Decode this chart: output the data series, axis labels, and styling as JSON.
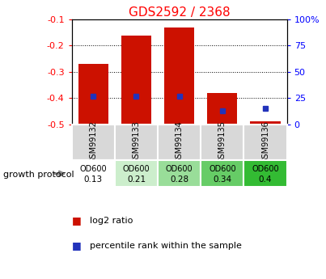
{
  "title": "GDS2592 / 2368",
  "samples": [
    "GSM99132",
    "GSM99133",
    "GSM99134",
    "GSM99135",
    "GSM99136"
  ],
  "log2_ratio": [
    -0.27,
    -0.16,
    -0.13,
    -0.38,
    -0.49
  ],
  "bar_bottom": -0.5,
  "percentile_rank": [
    27,
    27,
    27,
    13,
    15
  ],
  "od600_values": [
    "0.13",
    "0.21",
    "0.28",
    "0.34",
    "0.4"
  ],
  "od600_colors": [
    "#ffffff",
    "#cceecc",
    "#99dd99",
    "#66cc66",
    "#33bb33"
  ],
  "ylim_left": [
    -0.5,
    -0.1
  ],
  "yticks_left": [
    -0.5,
    -0.4,
    -0.3,
    -0.2,
    -0.1
  ],
  "yticks_right": [
    0,
    25,
    50,
    75,
    100
  ],
  "bar_color": "#cc1100",
  "blue_color": "#2233bb",
  "bg_color": "#ffffff",
  "plot_bg": "#ffffff",
  "label_log2": "log2 ratio",
  "label_pct": "percentile rank within the sample",
  "growth_protocol": "growth protocol",
  "od600_label": "OD600",
  "title_fontsize": 11,
  "tick_fontsize": 8,
  "legend_fontsize": 8
}
